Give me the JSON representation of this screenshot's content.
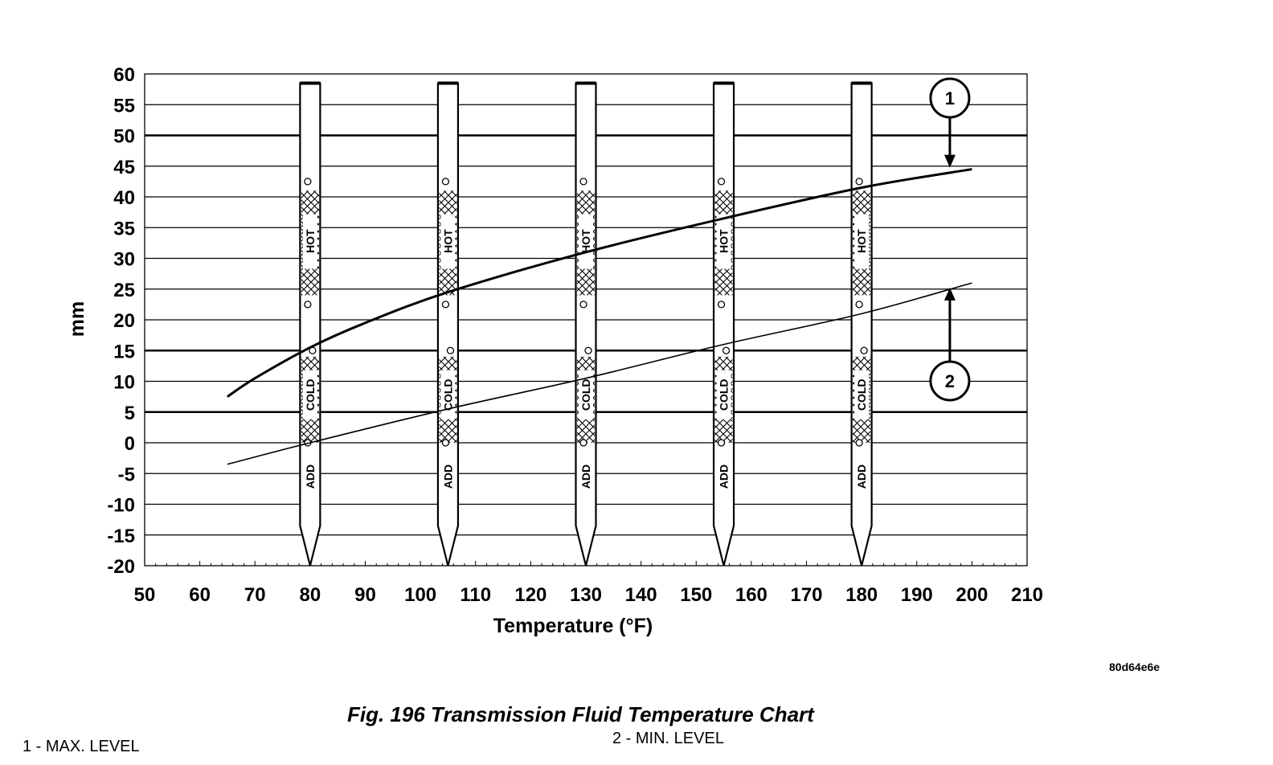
{
  "chart_data": {
    "type": "line",
    "xlabel": "Temperature (°F)",
    "ylabel": "mm",
    "xlim": [
      50,
      210
    ],
    "ylim": [
      -20,
      60
    ],
    "x_ticks": [
      50,
      60,
      70,
      80,
      90,
      100,
      110,
      120,
      130,
      140,
      150,
      160,
      170,
      180,
      190,
      200,
      210
    ],
    "y_ticks": [
      60,
      55,
      50,
      45,
      40,
      35,
      30,
      25,
      20,
      15,
      10,
      5,
      0,
      -5,
      -10,
      -15,
      -20
    ],
    "grid": true,
    "series": [
      {
        "name": "1",
        "x": [
          65,
          70,
          80,
          90,
          105,
          130,
          155,
          180,
          200
        ],
        "y": [
          7.5,
          10.5,
          15.5,
          19.5,
          24.5,
          31,
          36.5,
          41.5,
          44.5
        ]
      },
      {
        "name": "2",
        "x": [
          65,
          80,
          105,
          130,
          155,
          180,
          200
        ],
        "y": [
          -3.5,
          0,
          5.5,
          10.5,
          16,
          21,
          26
        ]
      }
    ],
    "dipsticks": {
      "positions": [
        80,
        105,
        130,
        155,
        180
      ],
      "labels": {
        "hot": "HOT",
        "cold": "COLD",
        "add": "ADD"
      }
    },
    "callouts": [
      {
        "label": "1",
        "x": 196,
        "y": 44.5
      },
      {
        "label": "2",
        "x": 196,
        "y": 25.5
      }
    ]
  },
  "figure": {
    "code": "80d64e6e",
    "title": "Fig. 196 Transmission Fluid Temperature Chart",
    "legend_1": "1 - MAX. LEVEL",
    "legend_2": "2 - MIN. LEVEL"
  }
}
